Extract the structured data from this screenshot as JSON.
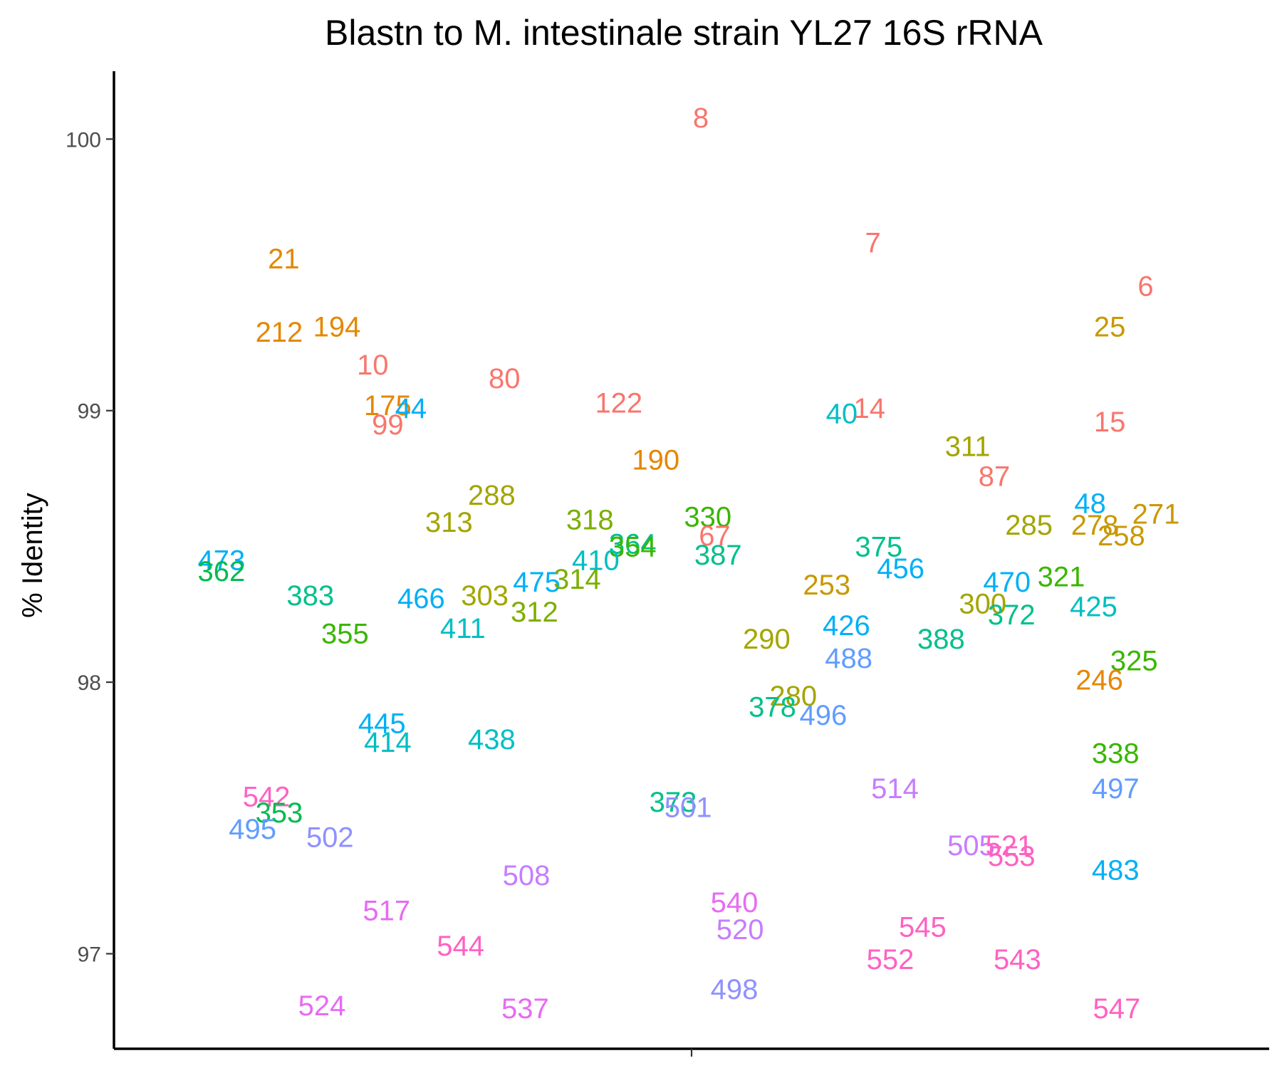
{
  "chart_data": {
    "type": "scatter",
    "title": "Blastn to M. intestinale strain YL27 16S rRNA",
    "xlabel": "",
    "ylabel": "% Identity",
    "ylim": [
      96.65,
      100.25
    ],
    "yticks": [
      97,
      98,
      99,
      100
    ],
    "grid": false,
    "legend": "none",
    "marker": "text-label",
    "points": [
      {
        "label": "8",
        "x": 0.508,
        "y": 100.08,
        "color": "#f8766d"
      },
      {
        "label": "7",
        "x": 0.657,
        "y": 99.62,
        "color": "#f8766d"
      },
      {
        "label": "6",
        "x": 0.893,
        "y": 99.46,
        "color": "#f8766d"
      },
      {
        "label": "21",
        "x": 0.147,
        "y": 99.56,
        "color": "#e58700"
      },
      {
        "label": "212",
        "x": 0.143,
        "y": 99.29,
        "color": "#e58700"
      },
      {
        "label": "194",
        "x": 0.193,
        "y": 99.31,
        "color": "#e58700"
      },
      {
        "label": "25",
        "x": 0.862,
        "y": 99.31,
        "color": "#c99800"
      },
      {
        "label": "10",
        "x": 0.224,
        "y": 99.17,
        "color": "#f8766d"
      },
      {
        "label": "80",
        "x": 0.338,
        "y": 99.12,
        "color": "#f8766d"
      },
      {
        "label": "122",
        "x": 0.437,
        "y": 99.03,
        "color": "#f8766d"
      },
      {
        "label": "175",
        "x": 0.237,
        "y": 99.02,
        "color": "#e58700"
      },
      {
        "label": "44",
        "x": 0.257,
        "y": 99.01,
        "color": "#00b0f6"
      },
      {
        "label": "99",
        "x": 0.237,
        "y": 98.95,
        "color": "#f8766d"
      },
      {
        "label": "40",
        "x": 0.63,
        "y": 98.99,
        "color": "#00bfc4"
      },
      {
        "label": "14",
        "x": 0.654,
        "y": 99.01,
        "color": "#f8766d"
      },
      {
        "label": "15",
        "x": 0.862,
        "y": 98.96,
        "color": "#f8766d"
      },
      {
        "label": "311",
        "x": 0.739,
        "y": 98.87,
        "color": "#a3a500"
      },
      {
        "label": "190",
        "x": 0.469,
        "y": 98.82,
        "color": "#e58700"
      },
      {
        "label": "87",
        "x": 0.762,
        "y": 98.76,
        "color": "#f8766d"
      },
      {
        "label": "288",
        "x": 0.327,
        "y": 98.69,
        "color": "#a3a500"
      },
      {
        "label": "48",
        "x": 0.845,
        "y": 98.66,
        "color": "#00b0f6"
      },
      {
        "label": "271",
        "x": 0.902,
        "y": 98.62,
        "color": "#c99800"
      },
      {
        "label": "313",
        "x": 0.29,
        "y": 98.59,
        "color": "#a3a500"
      },
      {
        "label": "318",
        "x": 0.412,
        "y": 98.6,
        "color": "#7cae00"
      },
      {
        "label": "330",
        "x": 0.514,
        "y": 98.61,
        "color": "#39b600"
      },
      {
        "label": "285",
        "x": 0.792,
        "y": 98.58,
        "color": "#a3a500"
      },
      {
        "label": "278",
        "x": 0.849,
        "y": 98.58,
        "color": "#c99800"
      },
      {
        "label": "258",
        "x": 0.872,
        "y": 98.54,
        "color": "#c99800"
      },
      {
        "label": "67",
        "x": 0.52,
        "y": 98.54,
        "color": "#f8766d"
      },
      {
        "label": "364",
        "x": 0.449,
        "y": 98.51,
        "color": "#00c08b"
      },
      {
        "label": "354",
        "x": 0.449,
        "y": 98.5,
        "color": "#39b600"
      },
      {
        "label": "375",
        "x": 0.662,
        "y": 98.5,
        "color": "#00c08b"
      },
      {
        "label": "473",
        "x": 0.093,
        "y": 98.45,
        "color": "#00b0f6"
      },
      {
        "label": "362",
        "x": 0.093,
        "y": 98.41,
        "color": "#00bb4e"
      },
      {
        "label": "387",
        "x": 0.523,
        "y": 98.47,
        "color": "#00c08b"
      },
      {
        "label": "410",
        "x": 0.417,
        "y": 98.45,
        "color": "#00bfc4"
      },
      {
        "label": "456",
        "x": 0.681,
        "y": 98.42,
        "color": "#00b0f6"
      },
      {
        "label": "321",
        "x": 0.82,
        "y": 98.39,
        "color": "#39b600"
      },
      {
        "label": "475",
        "x": 0.366,
        "y": 98.37,
        "color": "#00b0f6"
      },
      {
        "label": "314",
        "x": 0.401,
        "y": 98.38,
        "color": "#7cae00"
      },
      {
        "label": "253",
        "x": 0.617,
        "y": 98.36,
        "color": "#c99800"
      },
      {
        "label": "470",
        "x": 0.773,
        "y": 98.37,
        "color": "#00b0f6"
      },
      {
        "label": "383",
        "x": 0.17,
        "y": 98.32,
        "color": "#00c08b"
      },
      {
        "label": "466",
        "x": 0.266,
        "y": 98.31,
        "color": "#00b0f6"
      },
      {
        "label": "303",
        "x": 0.321,
        "y": 98.32,
        "color": "#a3a500"
      },
      {
        "label": "300",
        "x": 0.752,
        "y": 98.29,
        "color": "#a3a500"
      },
      {
        "label": "425",
        "x": 0.848,
        "y": 98.28,
        "color": "#00bfc4"
      },
      {
        "label": "312",
        "x": 0.364,
        "y": 98.26,
        "color": "#7cae00"
      },
      {
        "label": "372",
        "x": 0.777,
        "y": 98.25,
        "color": "#00c08b"
      },
      {
        "label": "426",
        "x": 0.634,
        "y": 98.21,
        "color": "#00b0f6"
      },
      {
        "label": "411",
        "x": 0.302,
        "y": 98.2,
        "color": "#00bfc4"
      },
      {
        "label": "355",
        "x": 0.2,
        "y": 98.18,
        "color": "#39b600"
      },
      {
        "label": "290",
        "x": 0.565,
        "y": 98.16,
        "color": "#a3a500"
      },
      {
        "label": "388",
        "x": 0.716,
        "y": 98.16,
        "color": "#00c08b"
      },
      {
        "label": "325",
        "x": 0.883,
        "y": 98.08,
        "color": "#39b600"
      },
      {
        "label": "488",
        "x": 0.636,
        "y": 98.09,
        "color": "#619cff"
      },
      {
        "label": "246",
        "x": 0.853,
        "y": 98.01,
        "color": "#e58700"
      },
      {
        "label": "280",
        "x": 0.588,
        "y": 97.95,
        "color": "#a3a500"
      },
      {
        "label": "378",
        "x": 0.57,
        "y": 97.91,
        "color": "#00c08b"
      },
      {
        "label": "496",
        "x": 0.614,
        "y": 97.88,
        "color": "#619cff"
      },
      {
        "label": "445",
        "x": 0.232,
        "y": 97.85,
        "color": "#00b0f6"
      },
      {
        "label": "414",
        "x": 0.237,
        "y": 97.78,
        "color": "#00bfc4"
      },
      {
        "label": "438",
        "x": 0.327,
        "y": 97.79,
        "color": "#00bfc4"
      },
      {
        "label": "338",
        "x": 0.867,
        "y": 97.74,
        "color": "#39b600"
      },
      {
        "label": "497",
        "x": 0.867,
        "y": 97.61,
        "color": "#619cff"
      },
      {
        "label": "514",
        "x": 0.676,
        "y": 97.61,
        "color": "#c77cff"
      },
      {
        "label": "542",
        "x": 0.132,
        "y": 97.58,
        "color": "#ff61c3"
      },
      {
        "label": "353",
        "x": 0.143,
        "y": 97.52,
        "color": "#00bb4e"
      },
      {
        "label": "373",
        "x": 0.484,
        "y": 97.56,
        "color": "#00c08b"
      },
      {
        "label": "501",
        "x": 0.497,
        "y": 97.54,
        "color": "#8f91ff"
      },
      {
        "label": "495",
        "x": 0.12,
        "y": 97.46,
        "color": "#619cff"
      },
      {
        "label": "502",
        "x": 0.187,
        "y": 97.43,
        "color": "#8f91ff"
      },
      {
        "label": "505",
        "x": 0.742,
        "y": 97.4,
        "color": "#c77cff"
      },
      {
        "label": "521",
        "x": 0.775,
        "y": 97.4,
        "color": "#ff61c3"
      },
      {
        "label": "553",
        "x": 0.777,
        "y": 97.36,
        "color": "#ff61c3"
      },
      {
        "label": "483",
        "x": 0.867,
        "y": 97.31,
        "color": "#00b0f6"
      },
      {
        "label": "508",
        "x": 0.357,
        "y": 97.29,
        "color": "#c77cff"
      },
      {
        "label": "540",
        "x": 0.537,
        "y": 97.19,
        "color": "#e76bf3"
      },
      {
        "label": "517",
        "x": 0.236,
        "y": 97.16,
        "color": "#e76bf3"
      },
      {
        "label": "545",
        "x": 0.7,
        "y": 97.1,
        "color": "#ff61c3"
      },
      {
        "label": "520",
        "x": 0.542,
        "y": 97.09,
        "color": "#c77cff"
      },
      {
        "label": "544",
        "x": 0.3,
        "y": 97.03,
        "color": "#ff61c3"
      },
      {
        "label": "552",
        "x": 0.672,
        "y": 96.98,
        "color": "#ff61c3"
      },
      {
        "label": "543",
        "x": 0.782,
        "y": 96.98,
        "color": "#ff61c3"
      },
      {
        "label": "498",
        "x": 0.537,
        "y": 96.87,
        "color": "#8f91ff"
      },
      {
        "label": "524",
        "x": 0.18,
        "y": 96.81,
        "color": "#e76bf3"
      },
      {
        "label": "537",
        "x": 0.356,
        "y": 96.8,
        "color": "#e76bf3"
      },
      {
        "label": "547",
        "x": 0.868,
        "y": 96.8,
        "color": "#ff61c3"
      }
    ]
  }
}
